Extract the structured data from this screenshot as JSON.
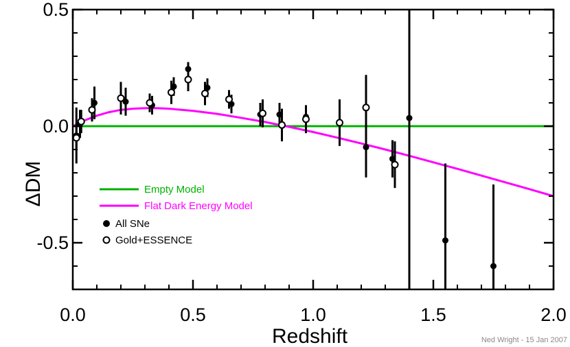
{
  "chart_data": {
    "type": "scatter",
    "xlabel": "Redshift",
    "ylabel": "ΔDM",
    "xlim": [
      0.0,
      2.0
    ],
    "ylim": [
      -0.7,
      0.5
    ],
    "x_ticks": [
      {
        "value": 0.0,
        "label": "0.0"
      },
      {
        "value": 0.5,
        "label": "0.5"
      },
      {
        "value": 1.0,
        "label": "1.0"
      },
      {
        "value": 1.5,
        "label": "1.5"
      },
      {
        "value": 2.0,
        "label": "2.0"
      }
    ],
    "y_ticks": [
      {
        "value": 0.5,
        "label": "0.5"
      },
      {
        "value": 0.0,
        "label": "0.0"
      },
      {
        "value": -0.5,
        "label": "-0.5"
      }
    ],
    "grid": false,
    "legend_position": "bottom-left",
    "credit": "Ned Wright - 15 Jan 2007",
    "colors": {
      "empty_model": "#00b000",
      "flat_model": "#ff00ff",
      "points": "#000000"
    },
    "series": [
      {
        "name": "Empty Model",
        "kind": "line",
        "x": [
          0.0,
          2.0
        ],
        "y": [
          0.0,
          0.0
        ]
      },
      {
        "name": "Flat Dark Energy Model",
        "kind": "line",
        "x": [
          0.0,
          0.05,
          0.1,
          0.15,
          0.2,
          0.25,
          0.3,
          0.35,
          0.4,
          0.5,
          0.6,
          0.7,
          0.8,
          0.9,
          1.0,
          1.1,
          1.2,
          1.3,
          1.4,
          1.5,
          1.6,
          1.7,
          1.8,
          1.9,
          2.0
        ],
        "y": [
          0.0,
          0.025,
          0.045,
          0.06,
          0.07,
          0.075,
          0.077,
          0.077,
          0.075,
          0.066,
          0.053,
          0.036,
          0.018,
          -0.003,
          -0.025,
          -0.049,
          -0.074,
          -0.1,
          -0.127,
          -0.155,
          -0.183,
          -0.212,
          -0.241,
          -0.27,
          -0.3
        ]
      },
      {
        "name": "All SNe",
        "kind": "points",
        "marker": "filled",
        "points": [
          {
            "x": 0.015,
            "y": -0.04,
            "err": 0.12
          },
          {
            "x": 0.03,
            "y": 0.01,
            "err": 0.06
          },
          {
            "x": 0.09,
            "y": 0.1,
            "err": 0.07
          },
          {
            "x": 0.22,
            "y": 0.105,
            "err": 0.06
          },
          {
            "x": 0.33,
            "y": 0.09,
            "err": 0.04
          },
          {
            "x": 0.42,
            "y": 0.17,
            "err": 0.04
          },
          {
            "x": 0.48,
            "y": 0.245,
            "err": 0.03
          },
          {
            "x": 0.56,
            "y": 0.165,
            "err": 0.04
          },
          {
            "x": 0.66,
            "y": 0.095,
            "err": 0.04
          },
          {
            "x": 0.78,
            "y": 0.05,
            "err": 0.05
          },
          {
            "x": 0.86,
            "y": 0.05,
            "err": 0.05
          },
          {
            "x": 0.97,
            "y": 0.04,
            "err": 0.05
          },
          {
            "x": 1.22,
            "y": -0.09,
            "err": 0.13
          },
          {
            "x": 1.33,
            "y": -0.14,
            "err": 0.08
          },
          {
            "x": 1.4,
            "y": 0.035,
            "err": 0.9
          },
          {
            "x": 1.55,
            "y": -0.49,
            "err": 0.33
          },
          {
            "x": 1.75,
            "y": -0.6,
            "err": 0.35
          }
        ]
      },
      {
        "name": "Gold+ESSENCE",
        "kind": "points",
        "marker": "open",
        "points": [
          {
            "x": 0.015,
            "y": -0.05,
            "err": 0.05
          },
          {
            "x": 0.035,
            "y": 0.02,
            "err": 0.05
          },
          {
            "x": 0.08,
            "y": 0.07,
            "err": 0.05
          },
          {
            "x": 0.2,
            "y": 0.12,
            "err": 0.07
          },
          {
            "x": 0.32,
            "y": 0.1,
            "err": 0.04
          },
          {
            "x": 0.41,
            "y": 0.145,
            "err": 0.05
          },
          {
            "x": 0.48,
            "y": 0.2,
            "err": 0.05
          },
          {
            "x": 0.55,
            "y": 0.14,
            "err": 0.05
          },
          {
            "x": 0.65,
            "y": 0.115,
            "err": 0.04
          },
          {
            "x": 0.79,
            "y": 0.055,
            "err": 0.06
          },
          {
            "x": 0.87,
            "y": 0.005,
            "err": 0.07
          },
          {
            "x": 0.97,
            "y": 0.03,
            "err": 0.06
          },
          {
            "x": 1.11,
            "y": 0.015,
            "err": 0.1
          },
          {
            "x": 1.22,
            "y": 0.08,
            "err": 0.14
          },
          {
            "x": 1.34,
            "y": -0.165,
            "err": 0.1
          }
        ]
      }
    ]
  }
}
